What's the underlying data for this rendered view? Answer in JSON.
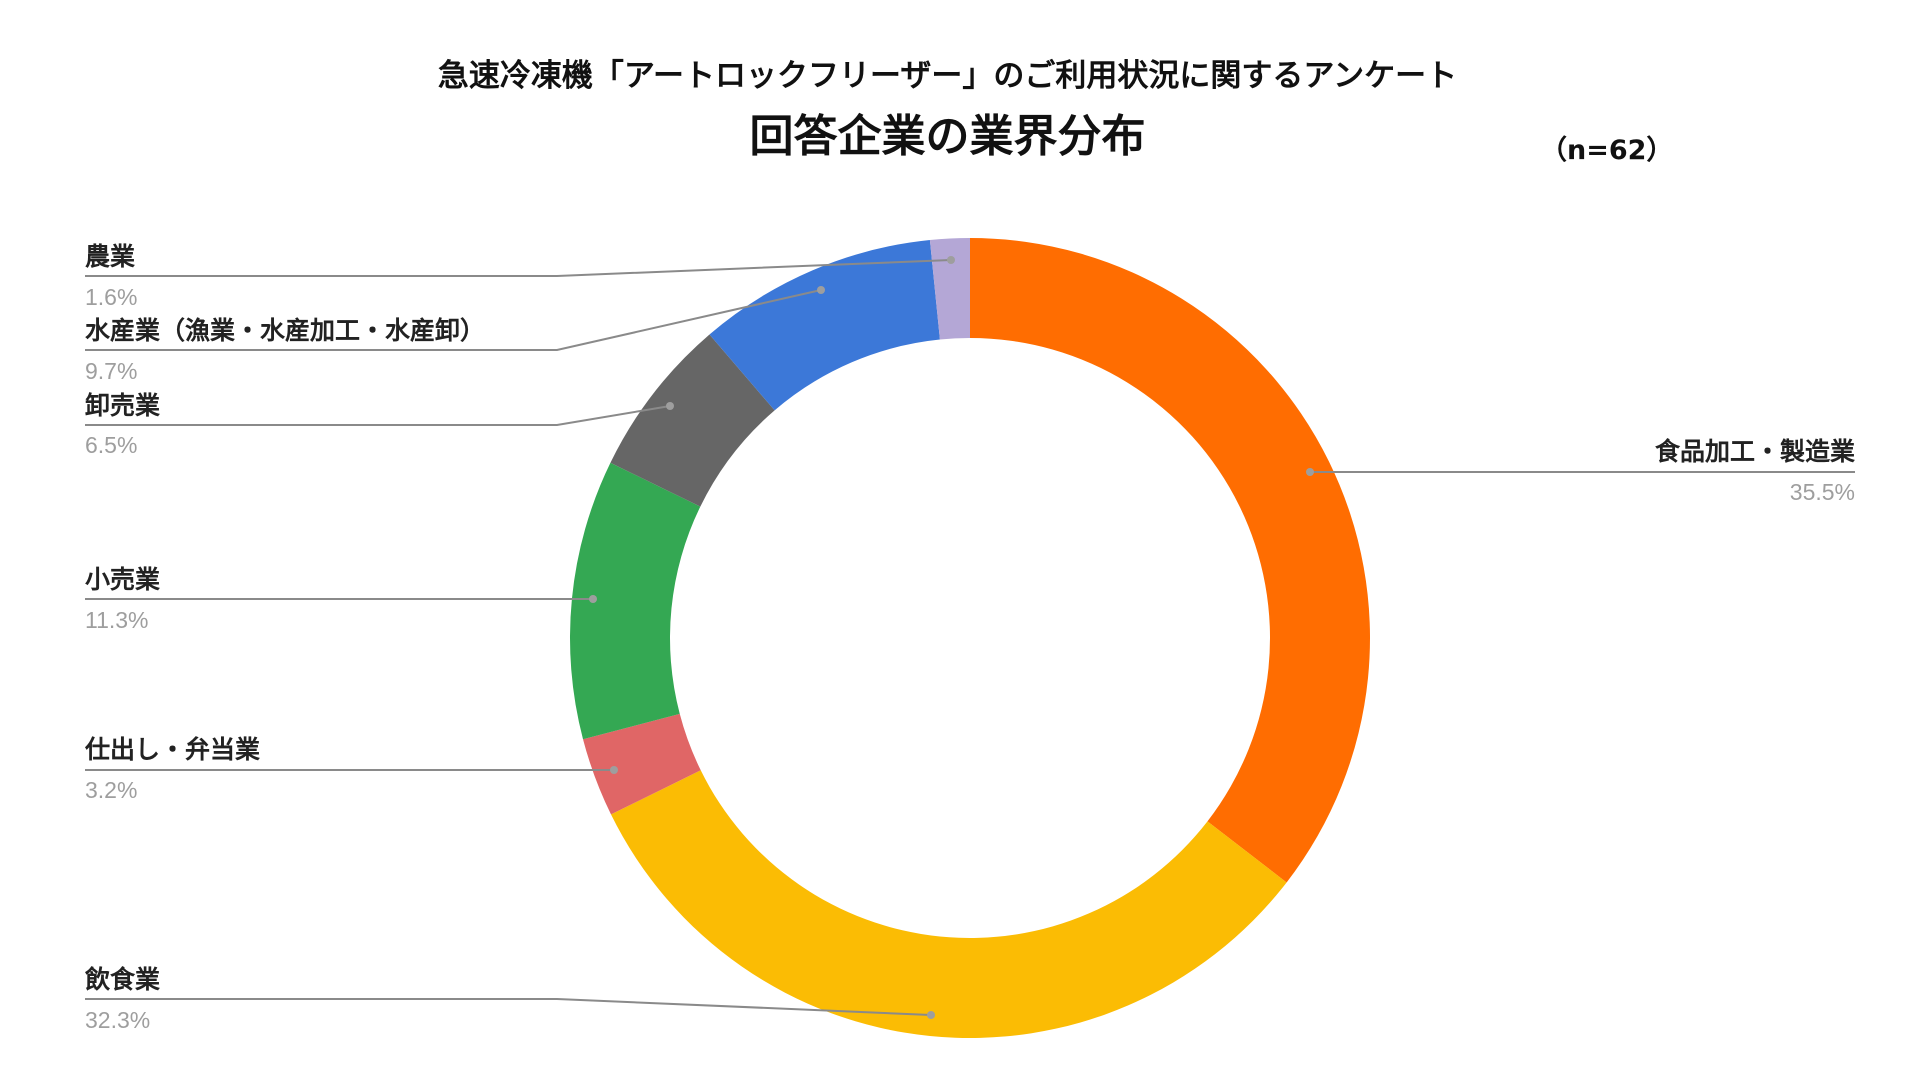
{
  "title": "急速冷凍機「アートロックフリーザー」のご利用状況に関するアンケート",
  "subtitle": "回答企業の業界分布",
  "sample_size": "（n=62）",
  "chart_data": {
    "type": "pie",
    "donut": true,
    "start": "top",
    "direction": "clockwise",
    "legend": "none (leader-line labels)",
    "slices": [
      {
        "label": "食品加工・製造業",
        "value": 35.5,
        "pct_label": "35.5%",
        "color": "#ff6d01"
      },
      {
        "label": "飲食業",
        "value": 32.3,
        "pct_label": "32.3%",
        "color": "#fbbc04"
      },
      {
        "label": "仕出し・弁当業",
        "value": 3.2,
        "pct_label": "3.2%",
        "color": "#e06666"
      },
      {
        "label": "小売業",
        "value": 11.3,
        "pct_label": "11.3%",
        "color": "#34a853"
      },
      {
        "label": "卸売業",
        "value": 6.5,
        "pct_label": "6.5%",
        "color": "#666666"
      },
      {
        "label": "水産業（漁業・水産加工・水産卸）",
        "value": 9.7,
        "pct_label": "9.7%",
        "color": "#3c78d8"
      },
      {
        "label": "農業",
        "value": 1.6,
        "pct_label": "1.6%",
        "color": "#b4a7d6"
      }
    ]
  }
}
